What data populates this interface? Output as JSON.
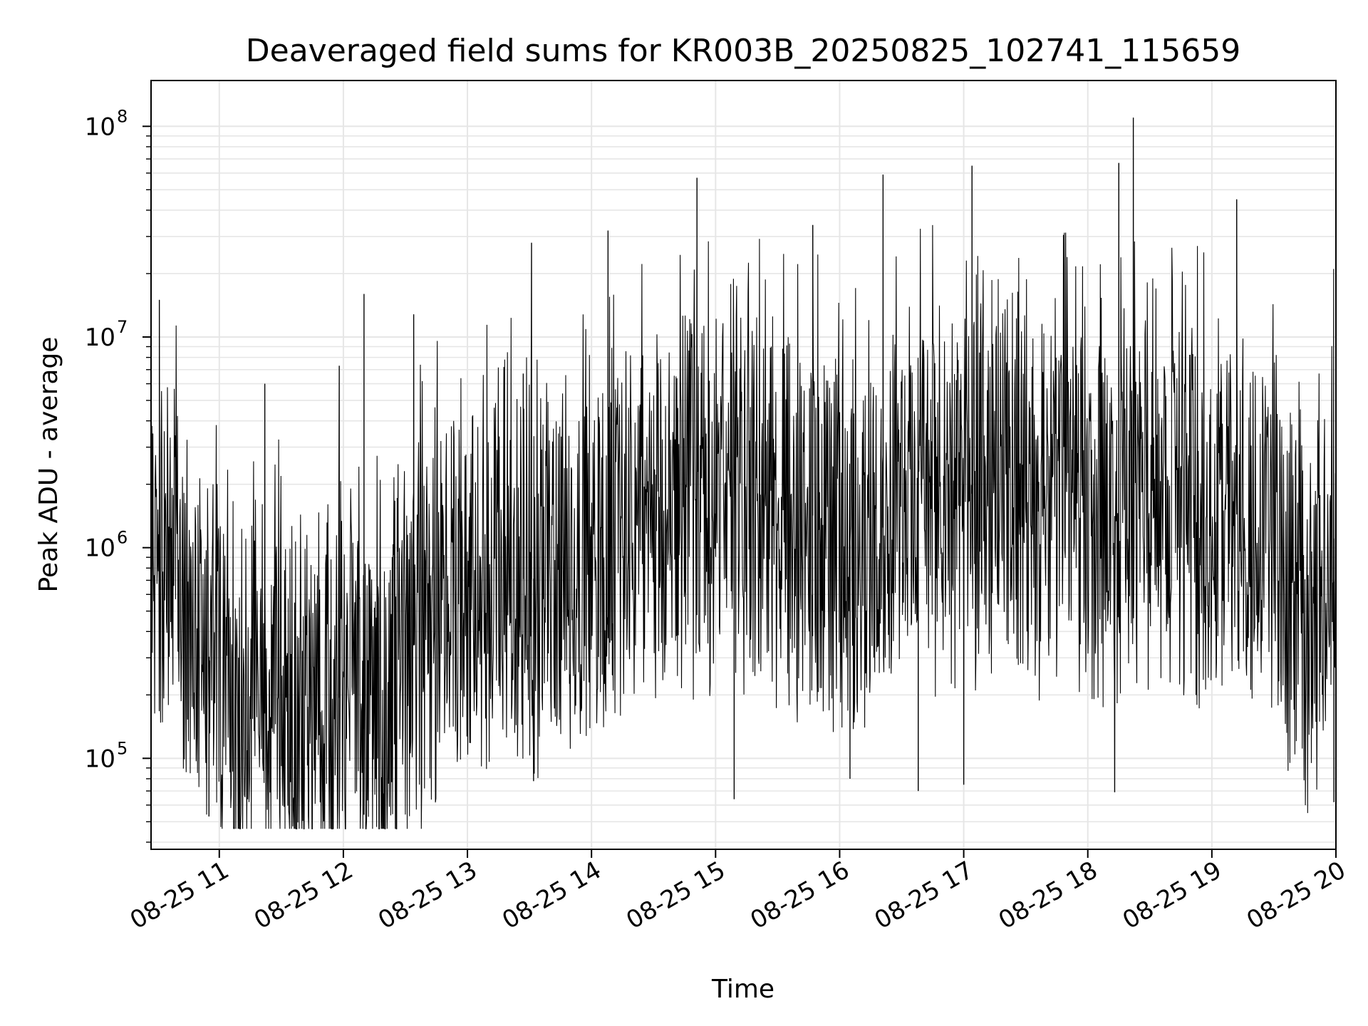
{
  "chart_data": {
    "type": "line",
    "title": "Deaveraged field sums for KR003B_20250825_102741_115659",
    "xlabel": "Time",
    "ylabel": "Peak ADU - average",
    "x_scale": "time",
    "y_scale": "log",
    "xlim": [
      "08-25 10:27",
      "08-25 20:00"
    ],
    "ylim": [
      37000,
      165000000
    ],
    "grid": true,
    "line_color": "#000000",
    "x_ticks": [
      "08-25 11",
      "08-25 12",
      "08-25 13",
      "08-25 14",
      "08-25 15",
      "08-25 16",
      "08-25 17",
      "08-25 18",
      "08-25 19",
      "08-25 20"
    ],
    "y_ticks": [
      {
        "base": "10",
        "exp": "5",
        "value": 100000
      },
      {
        "base": "10",
        "exp": "6",
        "value": 1000000
      },
      {
        "base": "10",
        "exp": "7",
        "value": 10000000
      },
      {
        "base": "10",
        "exp": "8",
        "value": 100000000
      }
    ],
    "series": [
      {
        "x": [
          "08-25 10:30",
          "08-25 10:45",
          "08-25 11:00",
          "08-25 11:15",
          "08-25 11:30",
          "08-25 11:45",
          "08-25 12:00",
          "08-25 12:15",
          "08-25 12:30",
          "08-25 12:45",
          "08-25 13:00",
          "08-25 13:15",
          "08-25 13:30",
          "08-25 13:45",
          "08-25 14:00",
          "08-25 14:15",
          "08-25 14:30",
          "08-25 14:45",
          "08-25 15:00",
          "08-25 15:15",
          "08-25 15:30",
          "08-25 15:45",
          "08-25 16:00",
          "08-25 16:15",
          "08-25 16:30",
          "08-25 16:45",
          "08-25 17:00",
          "08-25 17:15",
          "08-25 17:30",
          "08-25 17:45",
          "08-25 18:00",
          "08-25 18:15",
          "08-25 18:30",
          "08-25 18:45",
          "08-25 19:00",
          "08-25 19:15",
          "08-25 19:30",
          "08-25 19:45",
          "08-25 20:00"
        ],
        "y": [
          1000000,
          700000,
          200000,
          150000,
          180000,
          220000,
          190000,
          170000,
          300000,
          500000,
          700000,
          750000,
          700000,
          800000,
          700000,
          1300000,
          1400000,
          1500000,
          1800000,
          1600000,
          1400000,
          1500000,
          1000000,
          1100000,
          1500000,
          1800000,
          2000000,
          2200000,
          1800000,
          1600000,
          1500000,
          1400000,
          1600000,
          1700000,
          1600000,
          1400000,
          1200000,
          350000,
          1200000
        ],
        "peaks": [
          {
            "x": "08-25 10:31",
            "y": 15000000
          },
          {
            "x": "08-25 11:22",
            "y": 6000000
          },
          {
            "x": "08-25 11:58",
            "y": 7300000
          },
          {
            "x": "08-25 12:10",
            "y": 16000000
          },
          {
            "x": "08-25 12:34",
            "y": 12800000
          },
          {
            "x": "08-25 13:27",
            "y": 6700000
          },
          {
            "x": "08-25 13:31",
            "y": 28000000
          },
          {
            "x": "08-25 14:08",
            "y": 32000000
          },
          {
            "x": "08-25 14:51",
            "y": 57000000
          },
          {
            "x": "08-25 15:47",
            "y": 34000000
          },
          {
            "x": "08-25 16:21",
            "y": 59000000
          },
          {
            "x": "08-25 17:04",
            "y": 65000000
          },
          {
            "x": "08-25 18:22",
            "y": 110000000
          },
          {
            "x": "08-25 18:15",
            "y": 67000000
          },
          {
            "x": "08-25 19:12",
            "y": 45000000
          }
        ],
        "troughs": [
          {
            "x": "08-25 10:55",
            "y": 53000
          },
          {
            "x": "08-25 12:10",
            "y": 54000
          },
          {
            "x": "08-25 13:32",
            "y": 78000
          },
          {
            "x": "08-25 15:09",
            "y": 64000
          },
          {
            "x": "08-25 16:05",
            "y": 80000
          },
          {
            "x": "08-25 16:38",
            "y": 70000
          },
          {
            "x": "08-25 17:00",
            "y": 75000
          },
          {
            "x": "08-25 18:13",
            "y": 69000
          },
          {
            "x": "08-25 19:59",
            "y": 62000
          }
        ]
      }
    ]
  }
}
